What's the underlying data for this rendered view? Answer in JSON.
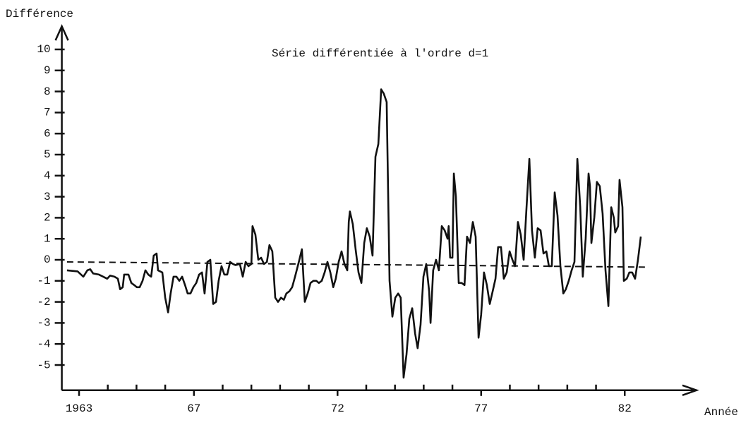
{
  "chart_data": {
    "type": "line",
    "title": "Série différentiée à l'ordre d=1",
    "y_label": "Différence",
    "x_label": "Année",
    "xlim": [
      1962.4,
      1984.5
    ],
    "xticks": [
      1963,
      {
        "value": 1967,
        "label": "67"
      },
      {
        "value": 1972,
        "label": "72"
      },
      {
        "value": 1977,
        "label": "77"
      },
      {
        "value": 1982,
        "label": "82"
      }
    ],
    "xminor": [
      1964,
      1965,
      1966,
      1968,
      1969,
      1970,
      1971,
      1973,
      1974,
      1975,
      1976,
      1978,
      1979,
      1980,
      1981
    ],
    "ylim": [
      -6.2,
      11.1
    ],
    "yticks": [
      -5,
      -4,
      -3,
      -2,
      -1,
      0,
      1,
      2,
      3,
      4,
      5,
      6,
      7,
      8,
      9,
      10
    ],
    "series": [
      {
        "color": "#111111",
        "x": [
          1962.58,
          1962.95,
          1963.15,
          1963.29,
          1963.39,
          1963.49,
          1963.69,
          1963.84,
          1963.98,
          1964.08,
          1964.23,
          1964.35,
          1964.43,
          1964.52,
          1964.57,
          1964.72,
          1964.82,
          1964.92,
          1965.01,
          1965.11,
          1965.21,
          1965.31,
          1965.41,
          1965.51,
          1965.6,
          1965.7,
          1965.75,
          1965.9,
          1966.0,
          1966.1,
          1966.19,
          1966.29,
          1966.39,
          1966.49,
          1966.59,
          1966.69,
          1966.78,
          1966.88,
          1966.98,
          1967.08,
          1967.18,
          1967.28,
          1967.37,
          1967.47,
          1967.57,
          1967.67,
          1967.77,
          1967.86,
          1967.96,
          1968.06,
          1968.16,
          1968.26,
          1968.36,
          1968.45,
          1968.6,
          1968.7,
          1968.8,
          1968.9,
          1969.0,
          1969.04,
          1969.14,
          1969.24,
          1969.34,
          1969.44,
          1969.54,
          1969.63,
          1969.73,
          1969.83,
          1969.93,
          1970.03,
          1970.13,
          1970.22,
          1970.32,
          1970.42,
          1970.52,
          1970.67,
          1970.76,
          1970.86,
          1970.96,
          1971.06,
          1971.16,
          1971.26,
          1971.35,
          1971.45,
          1971.55,
          1971.65,
          1971.75,
          1971.85,
          1971.94,
          1972.04,
          1972.14,
          1972.24,
          1972.34,
          1972.39,
          1972.43,
          1972.53,
          1972.63,
          1972.73,
          1972.83,
          1972.93,
          1973.02,
          1973.12,
          1973.22,
          1973.32,
          1973.42,
          1973.52,
          1973.61,
          1973.71,
          1973.81,
          1973.91,
          1974.01,
          1974.11,
          1974.2,
          1974.3,
          1974.4,
          1974.5,
          1974.6,
          1974.7,
          1974.79,
          1974.89,
          1974.99,
          1975.09,
          1975.19,
          1975.24,
          1975.33,
          1975.43,
          1975.53,
          1975.63,
          1975.73,
          1975.83,
          1975.87,
          1975.92,
          1976.0,
          1976.05,
          1976.12,
          1976.22,
          1976.32,
          1976.42,
          1976.51,
          1976.61,
          1976.71,
          1976.81,
          1976.91,
          1977.0,
          1977.1,
          1977.2,
          1977.3,
          1977.4,
          1977.5,
          1977.59,
          1977.69,
          1977.79,
          1977.89,
          1977.99,
          1978.09,
          1978.18,
          1978.28,
          1978.38,
          1978.48,
          1978.58,
          1978.68,
          1978.77,
          1978.87,
          1978.97,
          1979.07,
          1979.17,
          1979.27,
          1979.36,
          1979.46,
          1979.56,
          1979.66,
          1979.76,
          1979.86,
          1979.95,
          1980.05,
          1980.15,
          1980.25,
          1980.35,
          1980.45,
          1980.54,
          1980.64,
          1980.74,
          1980.79,
          1980.84,
          1980.94,
          1981.03,
          1981.13,
          1981.23,
          1981.33,
          1981.43,
          1981.53,
          1981.62,
          1981.67,
          1981.77,
          1981.82,
          1981.92,
          1981.97,
          1982.07,
          1982.16,
          1982.26,
          1982.36,
          1982.46,
          1982.56
        ],
        "values": [
          -0.5,
          -0.55,
          -0.8,
          -0.5,
          -0.45,
          -0.65,
          -0.7,
          -0.8,
          -0.9,
          -0.75,
          -0.8,
          -0.9,
          -1.4,
          -1.3,
          -0.7,
          -0.7,
          -1.1,
          -1.2,
          -1.3,
          -1.3,
          -1.0,
          -0.5,
          -0.7,
          -0.8,
          0.2,
          0.3,
          -0.5,
          -0.6,
          -1.8,
          -2.5,
          -1.6,
          -0.8,
          -0.8,
          -1.0,
          -0.8,
          -1.2,
          -1.6,
          -1.6,
          -1.3,
          -1.1,
          -0.7,
          -0.6,
          -1.6,
          -0.1,
          0.0,
          -2.1,
          -2.0,
          -1.0,
          -0.3,
          -0.7,
          -0.7,
          -0.1,
          -0.2,
          -0.25,
          -0.2,
          -0.8,
          -0.1,
          -0.3,
          -0.2,
          1.6,
          1.2,
          0.0,
          0.1,
          -0.2,
          -0.1,
          0.7,
          0.4,
          -1.8,
          -2.0,
          -1.8,
          -1.9,
          -1.6,
          -1.5,
          -1.3,
          -0.8,
          0.0,
          0.5,
          -2.0,
          -1.6,
          -1.1,
          -1.0,
          -1.0,
          -1.1,
          -1.0,
          -0.6,
          -0.1,
          -0.6,
          -1.3,
          -0.9,
          -0.1,
          0.4,
          -0.2,
          -0.5,
          1.8,
          2.3,
          1.7,
          0.5,
          -0.6,
          -1.1,
          0.8,
          1.5,
          1.1,
          0.2,
          4.9,
          5.5,
          8.1,
          7.9,
          7.5,
          -1.0,
          -2.7,
          -1.8,
          -1.6,
          -1.8,
          -5.6,
          -4.5,
          -2.8,
          -2.3,
          -3.5,
          -4.2,
          -3.1,
          -0.8,
          -0.2,
          -1.5,
          -3.0,
          -0.5,
          0.0,
          -0.5,
          1.6,
          1.4,
          1.0,
          1.6,
          0.1,
          0.1,
          4.1,
          3.0,
          -1.1,
          -1.1,
          -1.2,
          1.1,
          0.8,
          1.8,
          1.1,
          -3.7,
          -2.6,
          -0.6,
          -1.2,
          -2.1,
          -1.5,
          -0.9,
          0.6,
          0.6,
          -0.9,
          -0.6,
          0.4,
          0.0,
          -0.3,
          1.8,
          1.2,
          0.0,
          2.5,
          4.8,
          1.4,
          0.1,
          1.5,
          1.4,
          0.3,
          0.4,
          -0.3,
          -0.3,
          3.2,
          2.1,
          -0.3,
          -1.6,
          -1.4,
          -1.0,
          -0.5,
          -0.1,
          4.8,
          2.5,
          -0.8,
          1.0,
          4.1,
          3.5,
          0.8,
          2.0,
          3.7,
          3.5,
          2.2,
          -0.5,
          -2.2,
          2.5,
          2.0,
          1.3,
          1.6,
          3.8,
          2.5,
          -1.0,
          -0.9,
          -0.6,
          -0.6,
          -0.9,
          0.0,
          1.1
        ]
      }
    ],
    "trend": {
      "color": "#111111",
      "x": [
        1962.58,
        1982.85
      ],
      "values": [
        -0.1,
        -0.35
      ]
    }
  }
}
